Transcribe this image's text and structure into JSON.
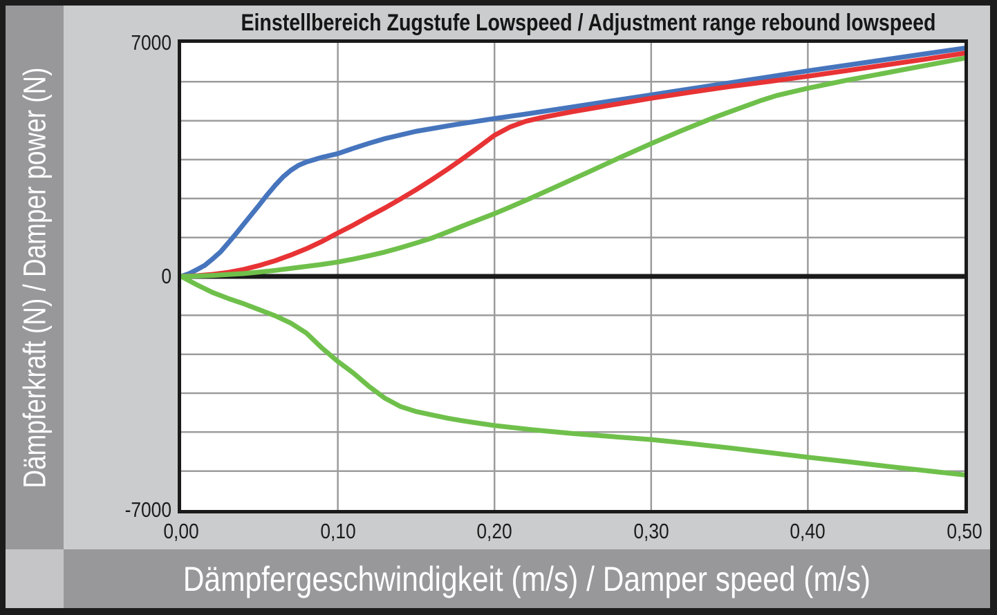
{
  "title": "Einstellbereich Zugstufe Lowspeed / Adjustment range rebound lowspeed",
  "y_axis": {
    "label": "Dämpferkraft (N) / Damper power (N)",
    "ticks": [
      "7000",
      "0",
      "-7000"
    ]
  },
  "x_axis": {
    "label": "Dämpfergeschwindigkeit (m/s) / Damper speed (m/s)",
    "ticks": [
      "0,00",
      "0,10",
      "0,20",
      "0,30",
      "0,40",
      "0,50"
    ]
  },
  "colors": {
    "background": "#cbcccd",
    "band": "#98989b",
    "plot_bg": "#ffffff",
    "gridline": "#9c9c9c",
    "axis_black": "#1a1a1a",
    "blue": "#4675bd",
    "red": "#e83335",
    "green": "#6fc04b"
  },
  "chart_data": {
    "type": "line",
    "title": "Einstellbereich Zugstufe Lowspeed / Adjustment range rebound lowspeed",
    "xlabel": "Dämpfergeschwindigkeit (m/s) / Damper speed (m/s)",
    "ylabel": "Dämpferkraft (N) / Damper power (N)",
    "xlim": [
      0,
      0.5
    ],
    "ylim": [
      -7000,
      7000
    ],
    "x_tick_values": [
      0.0,
      0.1,
      0.2,
      0.3,
      0.4,
      0.5
    ],
    "y_tick_values": [
      7000,
      0,
      -7000
    ],
    "x_grid_values": [
      0.1,
      0.2,
      0.3,
      0.4
    ],
    "y_grid_values": [
      1166.67,
      2333.33,
      3500,
      4666.67,
      5833.33
    ],
    "grid": "on",
    "legend": "none",
    "series": [
      {
        "name": "rebound-lowspeed-closed-blue",
        "color": "#4675bd",
        "points": [
          [
            0,
            0
          ],
          [
            0.005,
            80
          ],
          [
            0.01,
            200
          ],
          [
            0.015,
            330
          ],
          [
            0.02,
            520
          ],
          [
            0.025,
            730
          ],
          [
            0.03,
            1000
          ],
          [
            0.035,
            1280
          ],
          [
            0.04,
            1570
          ],
          [
            0.045,
            1860
          ],
          [
            0.05,
            2150
          ],
          [
            0.055,
            2450
          ],
          [
            0.06,
            2730
          ],
          [
            0.065,
            2980
          ],
          [
            0.07,
            3180
          ],
          [
            0.075,
            3330
          ],
          [
            0.08,
            3430
          ],
          [
            0.09,
            3570
          ],
          [
            0.1,
            3680
          ],
          [
            0.11,
            3840
          ],
          [
            0.12,
            3990
          ],
          [
            0.13,
            4130
          ],
          [
            0.15,
            4350
          ],
          [
            0.175,
            4550
          ],
          [
            0.2,
            4730
          ],
          [
            0.225,
            4900
          ],
          [
            0.25,
            5080
          ],
          [
            0.275,
            5260
          ],
          [
            0.3,
            5440
          ],
          [
            0.325,
            5620
          ],
          [
            0.35,
            5800
          ],
          [
            0.375,
            5980
          ],
          [
            0.4,
            6160
          ],
          [
            0.425,
            6330
          ],
          [
            0.45,
            6500
          ],
          [
            0.475,
            6670
          ],
          [
            0.5,
            6840
          ]
        ]
      },
      {
        "name": "rebound-lowspeed-medium-red",
        "color": "#e83335",
        "points": [
          [
            0,
            0
          ],
          [
            0.01,
            20
          ],
          [
            0.02,
            60
          ],
          [
            0.03,
            120
          ],
          [
            0.04,
            210
          ],
          [
            0.05,
            330
          ],
          [
            0.06,
            470
          ],
          [
            0.07,
            640
          ],
          [
            0.08,
            830
          ],
          [
            0.09,
            1050
          ],
          [
            0.1,
            1300
          ],
          [
            0.11,
            1540
          ],
          [
            0.12,
            1800
          ],
          [
            0.13,
            2050
          ],
          [
            0.14,
            2320
          ],
          [
            0.15,
            2600
          ],
          [
            0.16,
            2900
          ],
          [
            0.17,
            3210
          ],
          [
            0.18,
            3540
          ],
          [
            0.19,
            3880
          ],
          [
            0.2,
            4230
          ],
          [
            0.21,
            4480
          ],
          [
            0.22,
            4650
          ],
          [
            0.23,
            4760
          ],
          [
            0.24,
            4850
          ],
          [
            0.25,
            4940
          ],
          [
            0.275,
            5140
          ],
          [
            0.3,
            5340
          ],
          [
            0.325,
            5520
          ],
          [
            0.35,
            5690
          ],
          [
            0.375,
            5840
          ],
          [
            0.4,
            6000
          ],
          [
            0.425,
            6170
          ],
          [
            0.45,
            6340
          ],
          [
            0.475,
            6510
          ],
          [
            0.5,
            6690
          ]
        ]
      },
      {
        "name": "rebound-lowspeed-open-green",
        "color": "#6fc04b",
        "points": [
          [
            0,
            0
          ],
          [
            0.01,
            10
          ],
          [
            0.02,
            30
          ],
          [
            0.03,
            55
          ],
          [
            0.04,
            85
          ],
          [
            0.05,
            130
          ],
          [
            0.06,
            180
          ],
          [
            0.07,
            240
          ],
          [
            0.08,
            300
          ],
          [
            0.09,
            360
          ],
          [
            0.1,
            430
          ],
          [
            0.11,
            520
          ],
          [
            0.12,
            620
          ],
          [
            0.13,
            730
          ],
          [
            0.14,
            860
          ],
          [
            0.15,
            1000
          ],
          [
            0.16,
            1150
          ],
          [
            0.17,
            1330
          ],
          [
            0.18,
            1520
          ],
          [
            0.19,
            1700
          ],
          [
            0.2,
            1880
          ],
          [
            0.21,
            2080
          ],
          [
            0.22,
            2280
          ],
          [
            0.24,
            2700
          ],
          [
            0.26,
            3130
          ],
          [
            0.28,
            3560
          ],
          [
            0.3,
            3980
          ],
          [
            0.32,
            4380
          ],
          [
            0.34,
            4760
          ],
          [
            0.36,
            5100
          ],
          [
            0.37,
            5270
          ],
          [
            0.38,
            5420
          ],
          [
            0.39,
            5530
          ],
          [
            0.4,
            5640
          ],
          [
            0.425,
            5880
          ],
          [
            0.45,
            6100
          ],
          [
            0.475,
            6320
          ],
          [
            0.5,
            6540
          ]
        ]
      },
      {
        "name": "compression-reference-green",
        "color": "#6fc04b",
        "points": [
          [
            0,
            0
          ],
          [
            0.01,
            -250
          ],
          [
            0.02,
            -480
          ],
          [
            0.03,
            -660
          ],
          [
            0.04,
            -820
          ],
          [
            0.05,
            -1000
          ],
          [
            0.06,
            -1180
          ],
          [
            0.07,
            -1400
          ],
          [
            0.08,
            -1700
          ],
          [
            0.09,
            -2150
          ],
          [
            0.1,
            -2550
          ],
          [
            0.11,
            -2900
          ],
          [
            0.12,
            -3300
          ],
          [
            0.13,
            -3650
          ],
          [
            0.14,
            -3900
          ],
          [
            0.15,
            -4050
          ],
          [
            0.16,
            -4150
          ],
          [
            0.17,
            -4250
          ],
          [
            0.18,
            -4330
          ],
          [
            0.19,
            -4400
          ],
          [
            0.2,
            -4470
          ],
          [
            0.225,
            -4600
          ],
          [
            0.25,
            -4710
          ],
          [
            0.275,
            -4800
          ],
          [
            0.3,
            -4890
          ],
          [
            0.325,
            -5010
          ],
          [
            0.35,
            -5140
          ],
          [
            0.375,
            -5280
          ],
          [
            0.4,
            -5420
          ],
          [
            0.425,
            -5550
          ],
          [
            0.45,
            -5690
          ],
          [
            0.475,
            -5820
          ],
          [
            0.5,
            -5950
          ]
        ]
      }
    ]
  }
}
